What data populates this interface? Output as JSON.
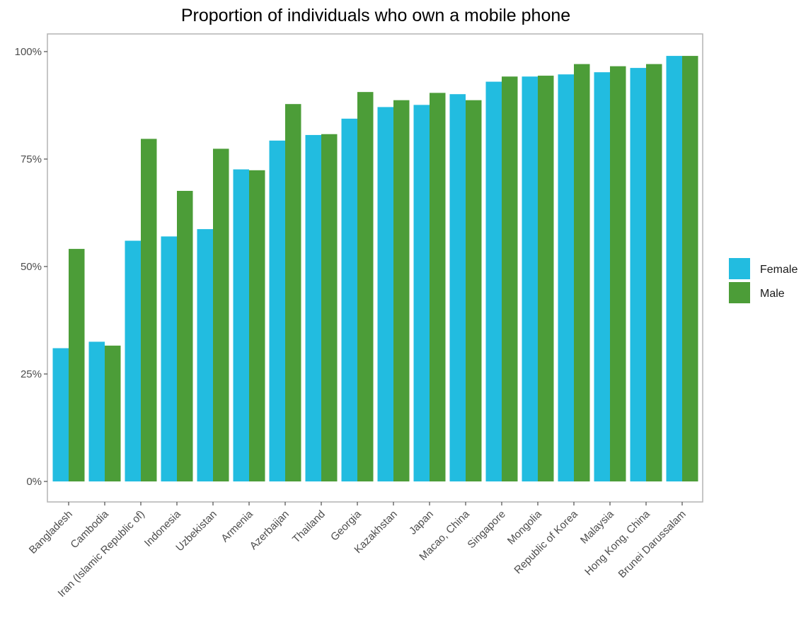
{
  "chart_data": {
    "type": "bar",
    "title": "Proportion of individuals who own a mobile phone",
    "xlabel": "",
    "ylabel": "",
    "categories": [
      "Bangladesh",
      "Cambodia",
      "Iran (Islamic Republic of)",
      "Indonesia",
      "Uzbekistan",
      "Armenia",
      "Azerbaijan",
      "Thailand",
      "Georgia",
      "Kazakhstan",
      "Japan",
      "Macao, China",
      "Singapore",
      "Mongolia",
      "Republic of Korea",
      "Malaysia",
      "Hong Kong, China",
      "Brunei Darussalam"
    ],
    "series": [
      {
        "name": "Female",
        "color": "#22bce0",
        "values": [
          31.0,
          32.5,
          56.0,
          57.0,
          58.7,
          72.6,
          79.3,
          80.6,
          84.4,
          87.1,
          87.6,
          90.1,
          93.0,
          94.2,
          94.7,
          95.2,
          96.2,
          99.0
        ]
      },
      {
        "name": "Male",
        "color": "#4c9d38",
        "values": [
          54.1,
          31.6,
          79.7,
          67.6,
          77.4,
          72.4,
          87.8,
          80.8,
          90.6,
          88.7,
          90.4,
          88.7,
          94.2,
          94.4,
          97.1,
          96.6,
          97.1,
          99.0
        ]
      }
    ],
    "ylim": [
      0,
      100
    ],
    "y_ticks": [
      0,
      25,
      50,
      75,
      100
    ],
    "y_tick_labels": [
      "0%",
      "25%",
      "50%",
      "75%",
      "100%"
    ],
    "grid": false,
    "legend_position": "right"
  }
}
